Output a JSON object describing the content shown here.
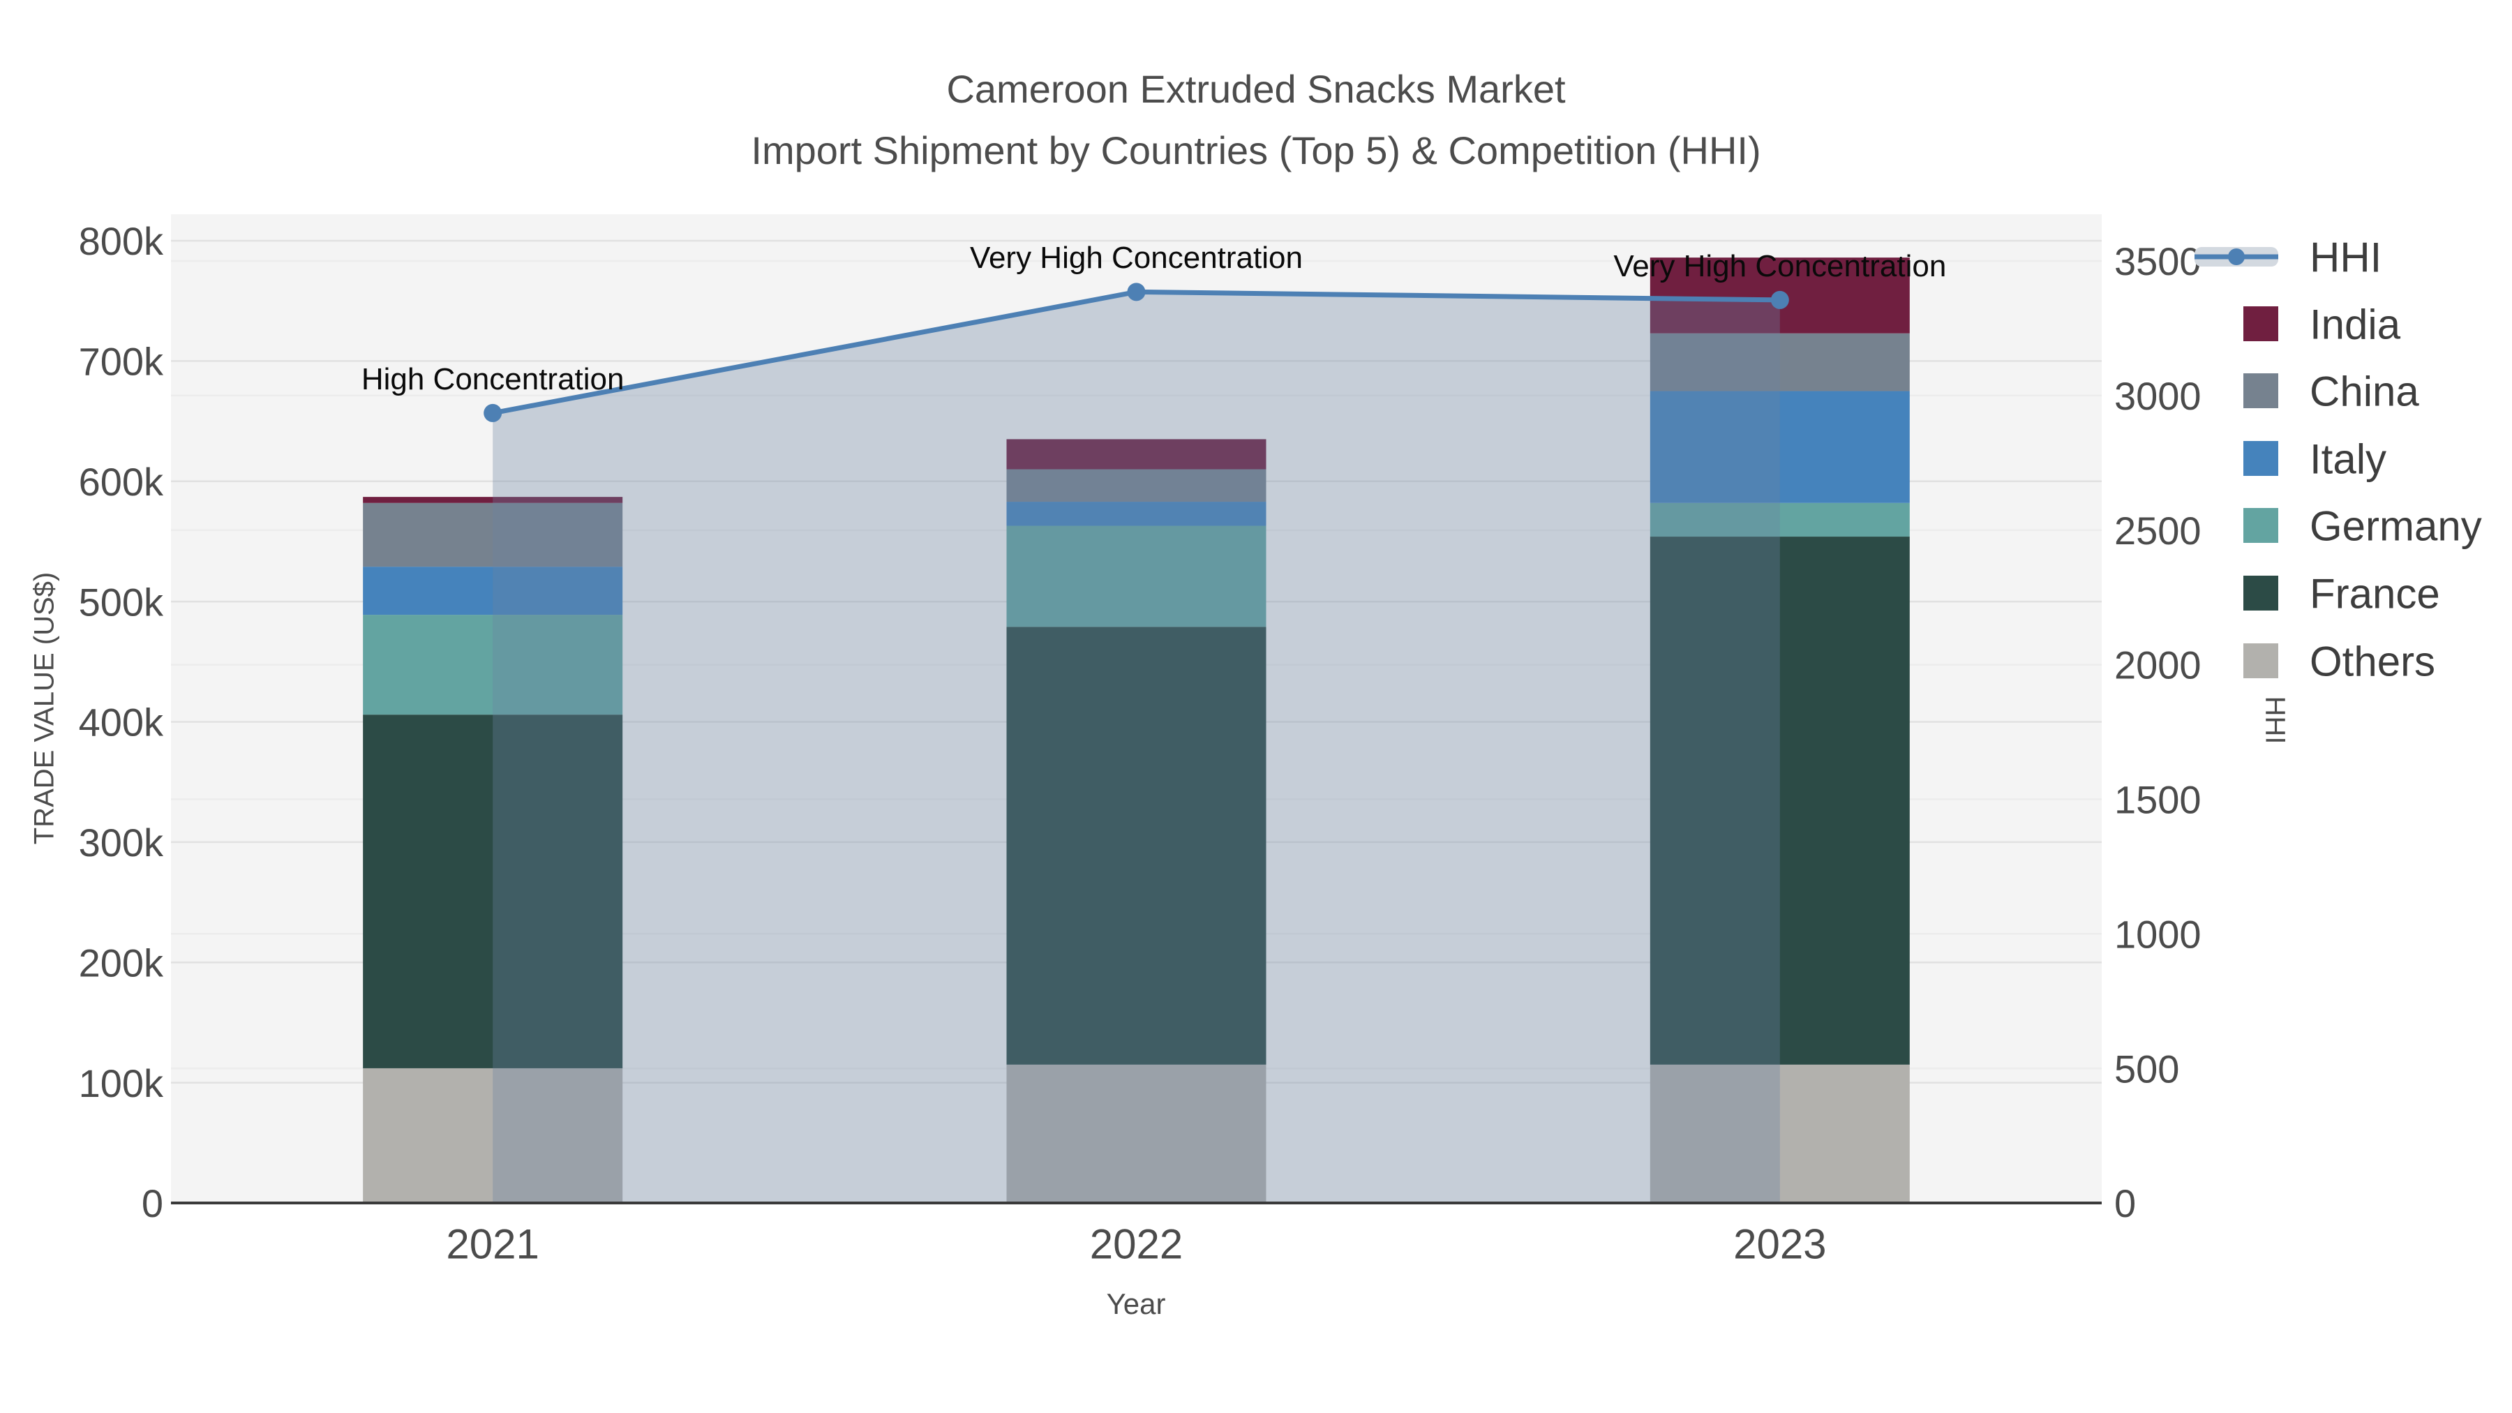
{
  "title": {
    "line1": "Cameroon Extruded Snacks Market",
    "line2": "Import Shipment by Countries (Top 5) & Competition (HHI)"
  },
  "legend": {
    "items": [
      {
        "label": "HHI",
        "type": "line",
        "color": "#4d80b4",
        "band_color": "#d3d9e0"
      },
      {
        "label": "India",
        "type": "patch",
        "color": "#701f40"
      },
      {
        "label": "China",
        "type": "patch",
        "color": "#76828f"
      },
      {
        "label": "Italy",
        "type": "patch",
        "color": "#4583bc"
      },
      {
        "label": "Germany",
        "type": "patch",
        "color": "#63a4a1"
      },
      {
        "label": "France",
        "type": "patch",
        "color": "#2c4b46"
      },
      {
        "label": "Others",
        "type": "patch",
        "color": "#b2b1ad"
      }
    ]
  },
  "colors": {
    "plot_bg": "#f4f4f4",
    "grid_left": "#e1e1e1",
    "grid_right": "#ececec",
    "axis_line": "#3a3a3a",
    "tick_text": "#4b4b4b",
    "title_text": "#4c4c4c",
    "legend_text": "#3d3d3d",
    "annotation_text": "#0a0a0a",
    "hhi_line": "#4d80b4",
    "hhi_area": "rgba(105,130,160,0.33)"
  },
  "chart_data": {
    "type": "stacked-bar+line",
    "categories": [
      "2021",
      "2022",
      "2023"
    ],
    "series": [
      {
        "name": "Others",
        "color": "#b2b1ad",
        "values": [
          112000,
          115000,
          115000
        ]
      },
      {
        "name": "France",
        "color": "#2c4b46",
        "values": [
          294000,
          364000,
          439000
        ]
      },
      {
        "name": "Germany",
        "color": "#63a4a1",
        "values": [
          83000,
          84000,
          28000
        ]
      },
      {
        "name": "Italy",
        "color": "#4583bc",
        "values": [
          40000,
          20000,
          93000
        ]
      },
      {
        "name": "China",
        "color": "#76828f",
        "values": [
          53000,
          27000,
          48000
        ]
      },
      {
        "name": "India",
        "color": "#701f40",
        "values": [
          5000,
          25000,
          63000
        ]
      }
    ],
    "bar_totals": [
      587000,
      635000,
      786000
    ],
    "line_series": {
      "name": "HHI",
      "values": [
        2935,
        3385,
        3355
      ],
      "area": true
    },
    "y_left": {
      "label": "TRADE VALUE (US$)",
      "min": 0,
      "max": 800000,
      "tick_step": 100000,
      "tick_labels": [
        "0",
        "100k",
        "200k",
        "300k",
        "400k",
        "500k",
        "600k",
        "700k",
        "800k"
      ]
    },
    "y_right": {
      "label": "HHI",
      "min": 0,
      "max": 3500,
      "tick_step": 500,
      "tick_labels": [
        "0",
        "500",
        "1000",
        "1500",
        "2000",
        "2500",
        "3000",
        "3500"
      ]
    },
    "x_label": "Year",
    "annotations": [
      {
        "category": "2021",
        "text": "High Concentration"
      },
      {
        "category": "2022",
        "text": "Very High Concentration"
      },
      {
        "category": "2023",
        "text": "Very High Concentration"
      }
    ],
    "legend_position": "upper right",
    "grid": true
  }
}
